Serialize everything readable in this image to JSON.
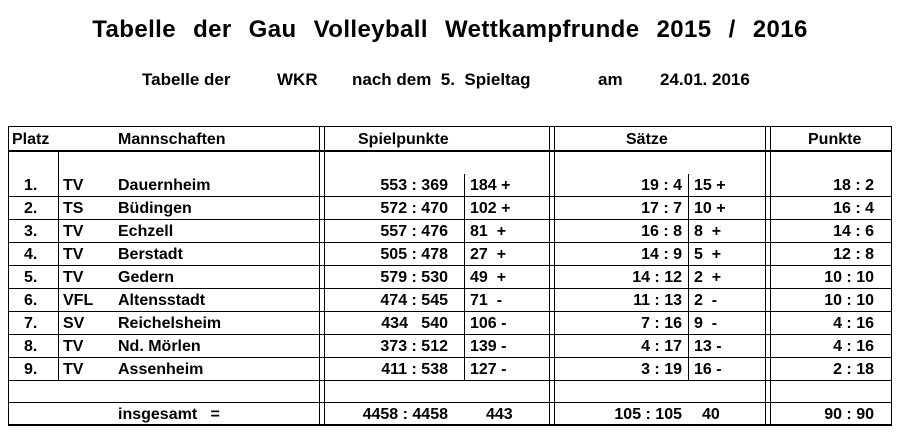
{
  "title": "Tabelle  der  Gau  Volleyball  Wettkampfrunde  2015 / 2016",
  "subtitle": {
    "part1": "Tabelle der",
    "part2": "WKR",
    "part3": "nach dem  5.  Spieltag",
    "part4": "am",
    "part5": "24.01. 2016"
  },
  "headers": {
    "platz": "Platz",
    "mannschaften": "Mannschaften",
    "spielpunkte": "Spielpunkte",
    "saetze": "Sätze",
    "punkte": "Punkte"
  },
  "rows": [
    {
      "platz": "1.",
      "prefix": "TV",
      "team": "Dauernheim",
      "sp": "553 : 369",
      "sp_diff": "184 +",
      "saetze": "19 : 4",
      "s_diff": "15 +",
      "punkte": "18 : 2"
    },
    {
      "platz": "2.",
      "prefix": "TS",
      "team": "Büdingen",
      "sp": "572 : 470",
      "sp_diff": "102 +",
      "saetze": "17 : 7",
      "s_diff": "10 +",
      "punkte": "16 : 4"
    },
    {
      "platz": "3.",
      "prefix": "TV",
      "team": "Echzell",
      "sp": "557 : 476",
      "sp_diff": "81  +",
      "saetze": "16 : 8",
      "s_diff": "8  +",
      "punkte": "14 : 6"
    },
    {
      "platz": "4.",
      "prefix": "TV",
      "team": "Berstadt",
      "sp": "505 : 478",
      "sp_diff": "27  +",
      "saetze": "14 : 9",
      "s_diff": "5  +",
      "punkte": "12 : 8"
    },
    {
      "platz": "5.",
      "prefix": "TV",
      "team": "Gedern",
      "sp": "579 : 530",
      "sp_diff": "49  +",
      "saetze": "14 : 12",
      "s_diff": "2  +",
      "punkte": "10 : 10"
    },
    {
      "platz": "6.",
      "prefix": "VFL",
      "team": "Altensstadt",
      "sp": "474 : 545",
      "sp_diff": "71  -",
      "saetze": "11 : 13",
      "s_diff": "2  -",
      "punkte": "10 : 10"
    },
    {
      "platz": "7.",
      "prefix": "SV",
      "team": "Reichelsheim",
      "sp": "434   540",
      "sp_diff": "106 -",
      "saetze": "7 : 16",
      "s_diff": "9  -",
      "punkte": "4 : 16"
    },
    {
      "platz": "8.",
      "prefix": "TV",
      "team": "Nd. Mörlen",
      "sp": "373 : 512",
      "sp_diff": "139 -",
      "saetze": "4 : 17",
      "s_diff": "13 -",
      "punkte": "4 : 16"
    },
    {
      "platz": "9.",
      "prefix": "TV",
      "team": "Assenheim",
      "sp": "411 : 538",
      "sp_diff": "127 -",
      "saetze": "3 : 19",
      "s_diff": "16 -",
      "punkte": "2 : 18"
    }
  ],
  "total": {
    "label": "insgesamt   =",
    "sp": "4458 : 4458",
    "sp_diff": "443",
    "saetze": "105 : 105",
    "s_diff": "40",
    "punkte": "90 : 90"
  }
}
